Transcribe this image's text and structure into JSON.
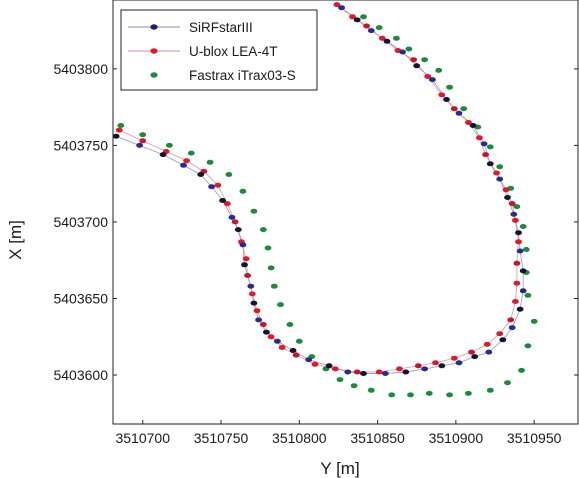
{
  "chart_data": {
    "type": "scatter",
    "title": "",
    "xlabel": "Y [m]",
    "ylabel": "X [m]",
    "xlim": [
      3510681,
      3510978
    ],
    "ylim": [
      5403568,
      5403845
    ],
    "xticks": [
      3510700,
      3510750,
      3510800,
      3510850,
      3510900,
      3510950
    ],
    "xtick_labels": [
      "3510700",
      "3510750",
      "3510800",
      "3510850",
      "3510900",
      "3510950"
    ],
    "yticks": [
      5403600,
      5403650,
      5403700,
      5403750,
      5403800
    ],
    "ytick_labels": [
      "5403600",
      "5403650",
      "5403700",
      "5403750",
      "5403800"
    ],
    "grid": false,
    "legend_position": "top-left",
    "series": [
      {
        "name": "SiRFstarIII",
        "color": "#1c1c6e",
        "marker": "ellipse",
        "connected": true,
        "points": [
          [
            3510683,
            5403756
          ],
          [
            3510698,
            5403750
          ],
          [
            3510713,
            5403744
          ],
          [
            3510726,
            5403737
          ],
          [
            3510737,
            5403731
          ],
          [
            3510744,
            5403723
          ],
          [
            3510751,
            5403714
          ],
          [
            3510757,
            5403703
          ],
          [
            3510761,
            5403695
          ],
          [
            3510764,
            5403685
          ],
          [
            3510765,
            5403672
          ],
          [
            3510769,
            5403658
          ],
          [
            3510771,
            5403647
          ],
          [
            3510774,
            5403636
          ],
          [
            3510779,
            5403628
          ],
          [
            3510786,
            5403622
          ],
          [
            3510796,
            5403616
          ],
          [
            3510806,
            5403610
          ],
          [
            3510819,
            5403606
          ],
          [
            3510831,
            5403602
          ],
          [
            3510841,
            5403601
          ],
          [
            3510855,
            5403601
          ],
          [
            3510868,
            5403602
          ],
          [
            3510880,
            5403604
          ],
          [
            3510891,
            5403606
          ],
          [
            3510902,
            5403608
          ],
          [
            3510912,
            5403612
          ],
          [
            3510921,
            5403615
          ],
          [
            3510930,
            5403623
          ],
          [
            3510936,
            5403631
          ],
          [
            3510941,
            5403643
          ],
          [
            3510943,
            5403655
          ],
          [
            3510943,
            5403668
          ],
          [
            3510941,
            5403681
          ],
          [
            3510940,
            5403693
          ],
          [
            3510937,
            5403705
          ],
          [
            3510933,
            5403716
          ],
          [
            3510928,
            5403728
          ],
          [
            3510922,
            5403738
          ],
          [
            3510918,
            5403751
          ],
          [
            3510911,
            5403763
          ],
          [
            3510902,
            5403771
          ],
          [
            3510894,
            5403780
          ],
          [
            3510885,
            5403793
          ],
          [
            3510875,
            5403802
          ],
          [
            3510866,
            5403811
          ],
          [
            3510856,
            5403818
          ],
          [
            3510846,
            5403825
          ],
          [
            3510837,
            5403832
          ],
          [
            3510827,
            5403840
          ]
        ]
      },
      {
        "name": "U-blox LEA-4T",
        "color": "#e0182a",
        "marker": "ellipse",
        "connected": true,
        "points": [
          [
            3510685,
            5403760
          ],
          [
            3510700,
            5403753
          ],
          [
            3510715,
            5403746
          ],
          [
            3510728,
            5403740
          ],
          [
            3510739,
            5403733
          ],
          [
            3510748,
            5403724
          ],
          [
            3510754,
            5403712
          ],
          [
            3510759,
            5403700
          ],
          [
            3510763,
            5403687
          ],
          [
            3510766,
            5403676
          ],
          [
            3510767,
            5403665
          ],
          [
            3510770,
            5403653
          ],
          [
            3510773,
            5403642
          ],
          [
            3510777,
            5403633
          ],
          [
            3510782,
            5403625
          ],
          [
            3510789,
            5403618
          ],
          [
            3510798,
            5403613
          ],
          [
            3510810,
            5403607
          ],
          [
            3510823,
            5403604
          ],
          [
            3510837,
            5403602
          ],
          [
            3510851,
            5403602
          ],
          [
            3510864,
            5403604
          ],
          [
            3510876,
            5403606
          ],
          [
            3510887,
            5403608
          ],
          [
            3510899,
            5403611
          ],
          [
            3510910,
            5403615
          ],
          [
            3510920,
            5403620
          ],
          [
            3510928,
            5403627
          ],
          [
            3510935,
            5403636
          ],
          [
            3510938,
            5403648
          ],
          [
            3510939,
            5403660
          ],
          [
            3510939,
            5403673
          ],
          [
            3510940,
            5403687
          ],
          [
            3510938,
            5403701
          ],
          [
            3510936,
            5403712
          ],
          [
            3510932,
            5403721
          ],
          [
            3510926,
            5403732
          ],
          [
            3510919,
            5403744
          ],
          [
            3510915,
            5403755
          ],
          [
            3510908,
            5403765
          ],
          [
            3510899,
            5403774
          ],
          [
            3510891,
            5403783
          ],
          [
            3510882,
            5403795
          ],
          [
            3510873,
            5403806
          ],
          [
            3510863,
            5403812
          ],
          [
            3510853,
            5403820
          ],
          [
            3510843,
            5403828
          ],
          [
            3510834,
            5403834
          ],
          [
            3510824,
            5403842
          ]
        ]
      },
      {
        "name": "Fastrax iTrax03-S",
        "color": "#1c8a3c",
        "marker": "ellipse",
        "connected": false,
        "points": [
          [
            3510686,
            5403763
          ],
          [
            3510700,
            5403757
          ],
          [
            3510717,
            5403750
          ],
          [
            3510731,
            5403745
          ],
          [
            3510743,
            5403739
          ],
          [
            3510755,
            5403731
          ],
          [
            3510764,
            5403720
          ],
          [
            3510771,
            5403707
          ],
          [
            3510777,
            5403695
          ],
          [
            3510780,
            5403683
          ],
          [
            3510782,
            5403670
          ],
          [
            3510784,
            5403658
          ],
          [
            3510788,
            5403646
          ],
          [
            3510794,
            5403633
          ],
          [
            3510800,
            5403622
          ],
          [
            3510808,
            5403612
          ],
          [
            3510817,
            5403604
          ],
          [
            3510826,
            5403597
          ],
          [
            3510835,
            5403593
          ],
          [
            3510846,
            5403590
          ],
          [
            3510859,
            5403587
          ],
          [
            3510871,
            5403587
          ],
          [
            3510883,
            5403588
          ],
          [
            3510896,
            5403587
          ],
          [
            3510908,
            5403588
          ],
          [
            3510922,
            5403590
          ],
          [
            3510933,
            5403595
          ],
          [
            3510942,
            5403603
          ],
          [
            3510946,
            5403619
          ],
          [
            3510950,
            5403635
          ],
          [
            3510946,
            5403652
          ],
          [
            3510945,
            5403667
          ],
          [
            3510945,
            5403682
          ],
          [
            3510943,
            5403697
          ],
          [
            3510939,
            5403710
          ],
          [
            3510935,
            5403722
          ],
          [
            3510928,
            5403736
          ],
          [
            3510922,
            5403749
          ],
          [
            3510914,
            5403762
          ],
          [
            3510905,
            5403774
          ],
          [
            3510896,
            5403788
          ],
          [
            3510889,
            5403799
          ],
          [
            3510880,
            5403806
          ],
          [
            3510870,
            5403813
          ],
          [
            3510862,
            5403820
          ],
          [
            3510851,
            5403827
          ],
          [
            3510841,
            5403834
          ]
        ]
      }
    ]
  }
}
